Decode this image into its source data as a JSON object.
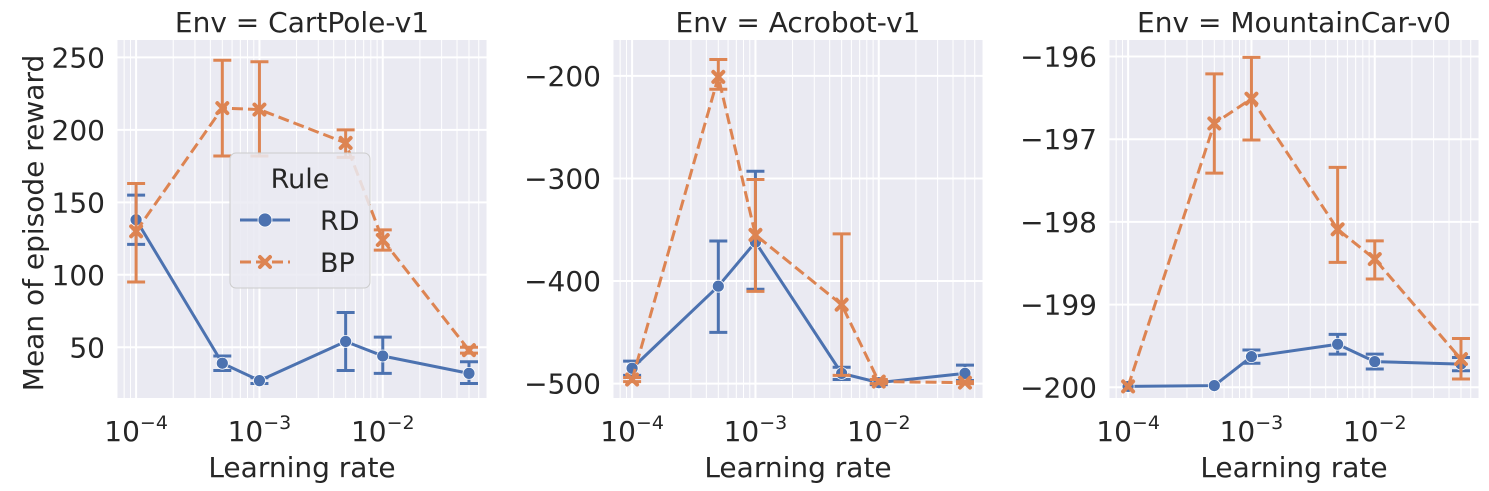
{
  "figure": {
    "y_axis_label": "Mean of episode reward",
    "legend_title": "Rule"
  },
  "chart_data": [
    {
      "type": "line",
      "title": "Env = CartPole-v1",
      "xlabel": "Learning rate",
      "ylabel": "Mean of episode reward",
      "xscale": "log",
      "xlim": [
        7e-05,
        0.07
      ],
      "ylim": [
        15,
        262
      ],
      "yticks": [
        50,
        100,
        150,
        200,
        250
      ],
      "xticks": [
        {
          "value": 0.0001,
          "label": "10",
          "exp": "−4"
        },
        {
          "value": 0.001,
          "label": "10",
          "exp": "−3"
        },
        {
          "value": 0.01,
          "label": "10",
          "exp": "−2"
        }
      ],
      "grid": true,
      "legend": {
        "placement": "center",
        "title": "Rule"
      },
      "series": [
        {
          "name": "RD",
          "color": "#4c72b0",
          "dash": "solid",
          "marker": "circle",
          "x": [
            0.0001,
            0.0005,
            0.001,
            0.005,
            0.01,
            0.05
          ],
          "y": [
            138,
            39,
            27,
            54,
            44,
            32
          ],
          "err_low": [
            121,
            34,
            25,
            34,
            32,
            25
          ],
          "err_high": [
            155,
            44,
            29,
            74,
            57,
            40
          ]
        },
        {
          "name": "BP",
          "color": "#dd8452",
          "dash": "dashed",
          "marker": "x",
          "x": [
            0.0001,
            0.0005,
            0.001,
            0.005,
            0.01,
            0.05
          ],
          "y": [
            130,
            215,
            214,
            191,
            124,
            48
          ],
          "err_low": [
            95,
            182,
            182,
            181,
            117,
            46
          ],
          "err_high": [
            163,
            248,
            247,
            200,
            131,
            50
          ]
        }
      ]
    },
    {
      "type": "line",
      "title": "Env = Acrobot-v1",
      "xlabel": "Learning rate",
      "ylabel": "",
      "xscale": "log",
      "xlim": [
        7e-05,
        0.07
      ],
      "ylim": [
        -514,
        -165
      ],
      "yticks": [
        -500,
        -400,
        -300,
        -200
      ],
      "xticks": [
        {
          "value": 0.0001,
          "label": "10",
          "exp": "−4"
        },
        {
          "value": 0.001,
          "label": "10",
          "exp": "−3"
        },
        {
          "value": 0.01,
          "label": "10",
          "exp": "−2"
        }
      ],
      "grid": true,
      "series": [
        {
          "name": "RD",
          "color": "#4c72b0",
          "dash": "solid",
          "marker": "circle",
          "x": [
            0.0001,
            0.0005,
            0.001,
            0.005,
            0.01,
            0.05
          ],
          "y": [
            -485,
            -405,
            -362,
            -490,
            -499,
            -490
          ],
          "err_low": [
            -492,
            -450,
            -408,
            -496,
            -501,
            -497
          ],
          "err_high": [
            -478,
            -361,
            -293,
            -484,
            -497,
            -482
          ]
        },
        {
          "name": "BP",
          "color": "#dd8452",
          "dash": "dashed",
          "marker": "x",
          "x": [
            0.0001,
            0.0005,
            0.001,
            0.005,
            0.01,
            0.05
          ],
          "y": [
            -496,
            -201,
            -355,
            -423,
            -498,
            -499
          ],
          "err_low": [
            -498,
            -213,
            -410,
            -492,
            -500,
            -500
          ],
          "err_high": [
            -494,
            -184,
            -301,
            -354,
            -496,
            -498
          ]
        }
      ]
    },
    {
      "type": "line",
      "title": "Env = MountainCar-v0",
      "xlabel": "Learning rate",
      "ylabel": "",
      "xscale": "log",
      "xlim": [
        7e-05,
        0.07
      ],
      "ylim": [
        -200.13,
        -195.8
      ],
      "yticks": [
        -200,
        -199,
        -198,
        -197,
        -196
      ],
      "xticks": [
        {
          "value": 0.0001,
          "label": "10",
          "exp": "−4"
        },
        {
          "value": 0.001,
          "label": "10",
          "exp": "−3"
        },
        {
          "value": 0.01,
          "label": "10",
          "exp": "−2"
        }
      ],
      "grid": true,
      "series": [
        {
          "name": "RD",
          "color": "#4c72b0",
          "dash": "solid",
          "marker": "circle",
          "x": [
            0.0001,
            0.0005,
            0.001,
            0.005,
            0.01,
            0.05
          ],
          "y": [
            -199.99,
            -199.98,
            -199.63,
            -199.48,
            -199.69,
            -199.72
          ],
          "err_low": [
            -199.99,
            -199.98,
            -199.71,
            -199.6,
            -199.78,
            -199.8
          ],
          "err_high": [
            -199.99,
            -199.98,
            -199.55,
            -199.36,
            -199.6,
            -199.64
          ]
        },
        {
          "name": "BP",
          "color": "#dd8452",
          "dash": "dashed",
          "marker": "x",
          "x": [
            0.0001,
            0.0005,
            0.001,
            0.005,
            0.01,
            0.05
          ],
          "y": [
            -199.99,
            -196.81,
            -196.51,
            -198.09,
            -198.45,
            -199.66
          ],
          "err_low": [
            -199.99,
            -197.41,
            -197.01,
            -198.49,
            -198.69,
            -199.9
          ],
          "err_high": [
            -199.99,
            -196.21,
            -196.01,
            -197.34,
            -198.23,
            -199.41
          ]
        }
      ]
    }
  ]
}
